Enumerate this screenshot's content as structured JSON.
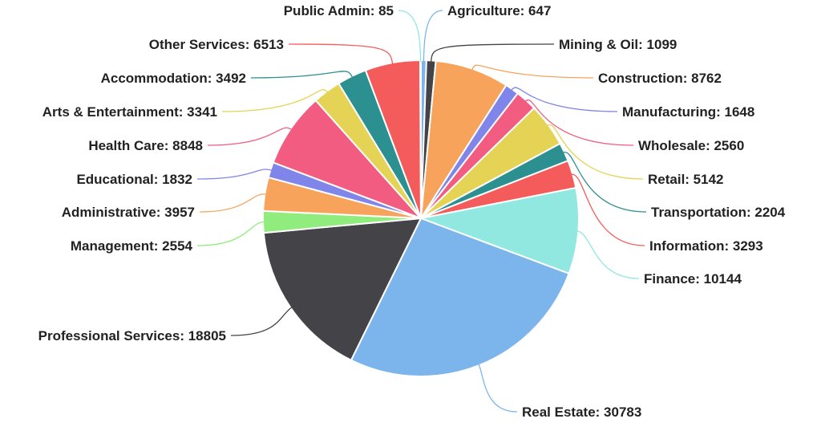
{
  "chart_data": {
    "type": "pie",
    "title": "",
    "start_angle_deg": 0,
    "direction": "clockwise",
    "label_format": "{name}: {value}",
    "slices": [
      {
        "name": "Agriculture",
        "value": 647,
        "color": "#7cb5ec"
      },
      {
        "name": "Mining & Oil",
        "value": 1099,
        "color": "#434348"
      },
      {
        "name": "Construction",
        "value": 8762,
        "color": "#f7a35c"
      },
      {
        "name": "Manufacturing",
        "value": 1648,
        "color": "#8085e9"
      },
      {
        "name": "Wholesale",
        "value": 2560,
        "color": "#f15c80"
      },
      {
        "name": "Retail",
        "value": 5142,
        "color": "#e4d354"
      },
      {
        "name": "Transportation",
        "value": 2204,
        "color": "#2b908f"
      },
      {
        "name": "Information",
        "value": 3293,
        "color": "#f45b5b"
      },
      {
        "name": "Finance",
        "value": 10144,
        "color": "#91e8e1"
      },
      {
        "name": "Real Estate",
        "value": 30783,
        "color": "#7cb5ec"
      },
      {
        "name": "Professional Services",
        "value": 18805,
        "color": "#434348"
      },
      {
        "name": "Management",
        "value": 2554,
        "color": "#90ed7d"
      },
      {
        "name": "Administrative",
        "value": 3957,
        "color": "#f7a35c"
      },
      {
        "name": "Educational",
        "value": 1832,
        "color": "#8085e9"
      },
      {
        "name": "Health Care",
        "value": 8848,
        "color": "#f15c80"
      },
      {
        "name": "Arts & Entertainment",
        "value": 3341,
        "color": "#e4d354"
      },
      {
        "name": "Accommodation",
        "value": 3492,
        "color": "#2b908f"
      },
      {
        "name": "Other Services",
        "value": 6513,
        "color": "#f45b5b"
      },
      {
        "name": "Public Admin",
        "value": 85,
        "color": "#91e8e1"
      }
    ]
  }
}
